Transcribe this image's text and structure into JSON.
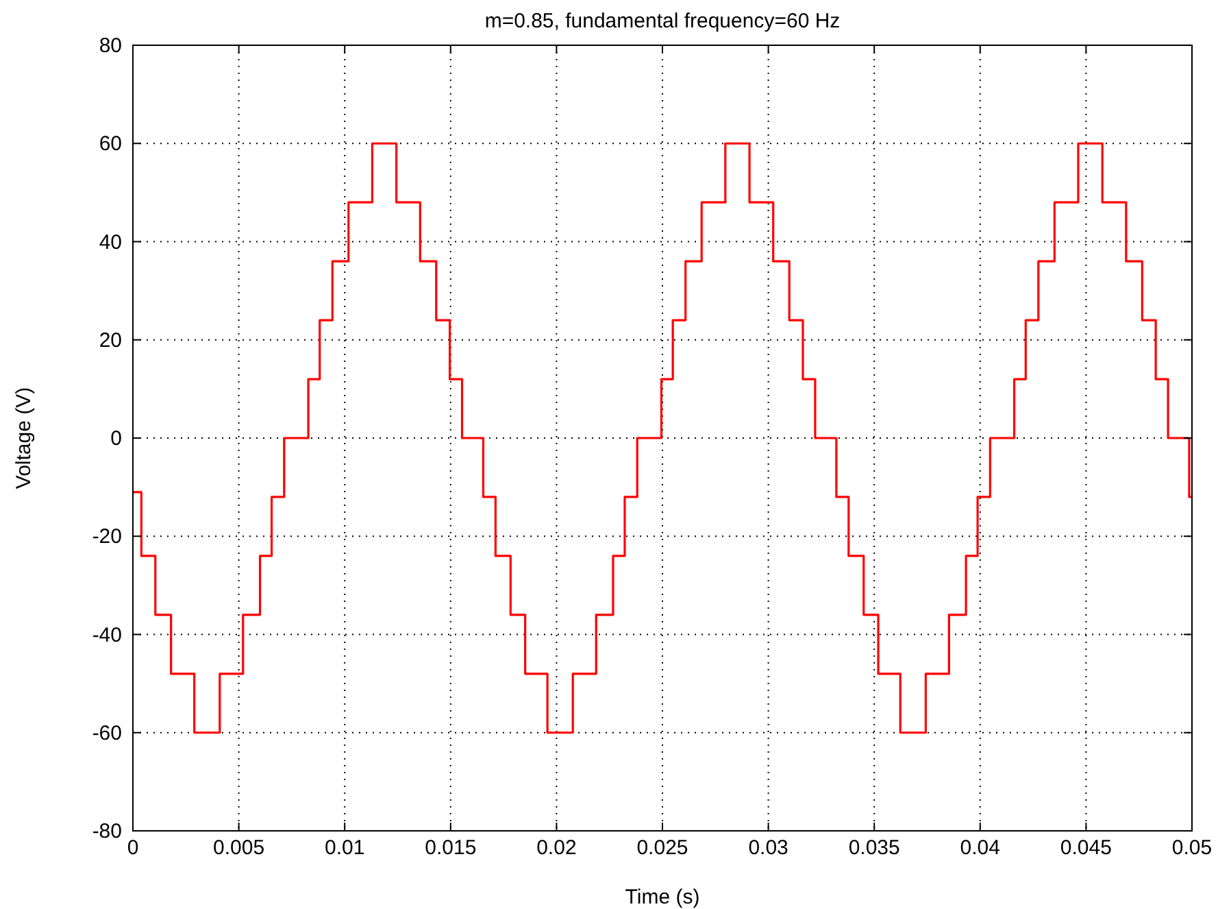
{
  "chart_data": {
    "type": "step",
    "title": "m=0.85, fundamental frequency=60 Hz",
    "xlabel": "Time (s)",
    "ylabel": "Voltage (V)",
    "xlim": [
      0,
      0.05
    ],
    "xticks": [
      0,
      0.005,
      0.01,
      0.015,
      0.02,
      0.025,
      0.03,
      0.035,
      0.04,
      0.045,
      0.05
    ],
    "ylim": [
      -80,
      80
    ],
    "yticks": [
      -80,
      -60,
      -40,
      -20,
      0,
      20,
      40,
      60,
      80
    ],
    "grid": true,
    "line_style": "solid",
    "marker": "none",
    "series": [
      {
        "color": "#ff0000",
        "x": [
          0,
          0.0004,
          0.00106,
          0.0018,
          0.0029,
          0.0041,
          0.0052,
          0.006,
          0.00655,
          0.00714,
          0.00828,
          0.00882,
          0.00942,
          0.01018,
          0.0113,
          0.01244,
          0.01356,
          0.01432,
          0.01496,
          0.01554,
          0.01654,
          0.01712,
          0.01783,
          0.01852,
          0.01957,
          0.02077,
          0.02187,
          0.02267,
          0.02322,
          0.02381,
          0.02495,
          0.02549,
          0.02609,
          0.02685,
          0.02797,
          0.02911,
          0.03023,
          0.03099,
          0.03163,
          0.03221,
          0.03321,
          0.03379,
          0.0345,
          0.03519,
          0.03623,
          0.03743,
          0.03853,
          0.03933,
          0.03988,
          0.04047,
          0.04161,
          0.04215,
          0.04275,
          0.04351,
          0.04463,
          0.04577,
          0.04689,
          0.04765,
          0.04829,
          0.04887,
          0.04987,
          0.05
        ],
        "values": [
          -11,
          -24,
          -36,
          -48,
          -60,
          -48,
          -36,
          -24,
          -12,
          0,
          12,
          24,
          36,
          48,
          60,
          48,
          36,
          24,
          12,
          0,
          -12,
          -24,
          -36,
          -48,
          -60,
          -48,
          -36,
          -24,
          -12,
          0,
          12,
          24,
          36,
          48,
          60,
          48,
          36,
          24,
          12,
          0,
          -12,
          -24,
          -36,
          -48,
          -60,
          -48,
          -36,
          -24,
          -12,
          0,
          12,
          24,
          36,
          48,
          60,
          48,
          36,
          24,
          12,
          0,
          -12,
          -12
        ]
      }
    ]
  }
}
